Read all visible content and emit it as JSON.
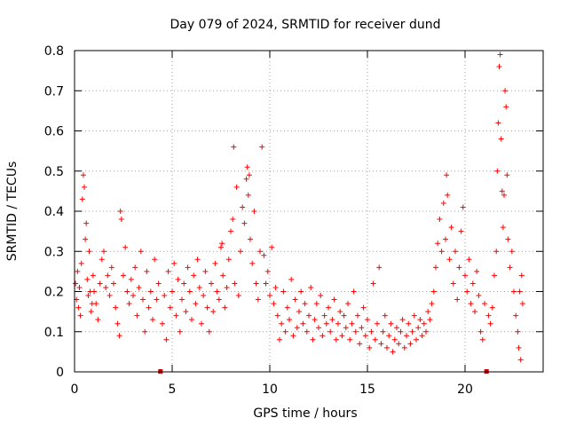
{
  "chart_data": {
    "type": "scatter",
    "title": "Day 079 of 2024, SRMTID for receiver dund",
    "xlabel": "GPS time / hours",
    "ylabel": "SRMTID / TECUs",
    "xlim": [
      0,
      24
    ],
    "ylim": [
      0,
      0.8
    ],
    "xticks": [
      0,
      5,
      10,
      15,
      20
    ],
    "yticks": [
      0,
      0.1,
      0.2,
      0.3,
      0.4,
      0.5,
      0.6,
      0.7,
      0.8
    ],
    "xtick_labels": [
      "0",
      "5",
      "10",
      "15",
      "20"
    ],
    "ytick_labels": [
      "0",
      "0.1",
      "0.2",
      "0.3",
      "0.4",
      "0.5",
      "0.6",
      "0.7",
      "0.8"
    ],
    "grid": true,
    "marker": "plus",
    "colors": {
      "points": "#ff0000",
      "zero_markers": "#cc0000",
      "grid": "#a0a0a0",
      "axes": "#000000"
    },
    "zero_value_markers": [
      {
        "x": 4.4,
        "y": 0
      },
      {
        "x": 21.1,
        "y": 0
      }
    ],
    "series": [
      {
        "name": "SRMTID",
        "points": [
          [
            0.05,
            0.22
          ],
          [
            0.1,
            0.18
          ],
          [
            0.15,
            0.25
          ],
          [
            0.2,
            0.16
          ],
          [
            0.25,
            0.21
          ],
          [
            0.3,
            0.14
          ],
          [
            0.35,
            0.27
          ],
          [
            0.4,
            0.43
          ],
          [
            0.45,
            0.49
          ],
          [
            0.5,
            0.46
          ],
          [
            0.55,
            0.33
          ],
          [
            0.6,
            0.37
          ],
          [
            0.65,
            0.23
          ],
          [
            0.7,
            0.19
          ],
          [
            0.75,
            0.3
          ],
          [
            0.8,
            0.2
          ],
          [
            0.85,
            0.15
          ],
          [
            0.9,
            0.17
          ],
          [
            0.95,
            0.24
          ],
          [
            1.0,
            0.2
          ],
          [
            1.1,
            0.17
          ],
          [
            1.2,
            0.13
          ],
          [
            1.3,
            0.22
          ],
          [
            1.4,
            0.28
          ],
          [
            1.5,
            0.3
          ],
          [
            1.6,
            0.21
          ],
          [
            1.7,
            0.24
          ],
          [
            1.8,
            0.19
          ],
          [
            1.9,
            0.26
          ],
          [
            2.0,
            0.22
          ],
          [
            2.1,
            0.16
          ],
          [
            2.2,
            0.12
          ],
          [
            2.3,
            0.09
          ],
          [
            2.35,
            0.4
          ],
          [
            2.4,
            0.38
          ],
          [
            2.5,
            0.24
          ],
          [
            2.6,
            0.31
          ],
          [
            2.7,
            0.2
          ],
          [
            2.8,
            0.17
          ],
          [
            2.9,
            0.23
          ],
          [
            3.0,
            0.19
          ],
          [
            3.1,
            0.26
          ],
          [
            3.2,
            0.14
          ],
          [
            3.3,
            0.21
          ],
          [
            3.4,
            0.3
          ],
          [
            3.5,
            0.18
          ],
          [
            3.6,
            0.1
          ],
          [
            3.7,
            0.25
          ],
          [
            3.8,
            0.16
          ],
          [
            3.9,
            0.2
          ],
          [
            4.0,
            0.13
          ],
          [
            4.1,
            0.28
          ],
          [
            4.2,
            0.18
          ],
          [
            4.3,
            0.22
          ],
          [
            4.5,
            0.12
          ],
          [
            4.6,
            0.19
          ],
          [
            4.7,
            0.08
          ],
          [
            4.8,
            0.25
          ],
          [
            4.9,
            0.16
          ],
          [
            5.0,
            0.2
          ],
          [
            5.1,
            0.27
          ],
          [
            5.2,
            0.14
          ],
          [
            5.3,
            0.23
          ],
          [
            5.4,
            0.1
          ],
          [
            5.5,
            0.18
          ],
          [
            5.6,
            0.22
          ],
          [
            5.7,
            0.15
          ],
          [
            5.8,
            0.26
          ],
          [
            5.9,
            0.2
          ],
          [
            6.0,
            0.13
          ],
          [
            6.1,
            0.24
          ],
          [
            6.2,
            0.17
          ],
          [
            6.3,
            0.28
          ],
          [
            6.4,
            0.21
          ],
          [
            6.5,
            0.12
          ],
          [
            6.6,
            0.19
          ],
          [
            6.7,
            0.25
          ],
          [
            6.8,
            0.16
          ],
          [
            6.9,
            0.1
          ],
          [
            7.0,
            0.22
          ],
          [
            7.1,
            0.15
          ],
          [
            7.2,
            0.27
          ],
          [
            7.3,
            0.2
          ],
          [
            7.4,
            0.18
          ],
          [
            7.5,
            0.31
          ],
          [
            7.55,
            0.32
          ],
          [
            7.6,
            0.24
          ],
          [
            7.7,
            0.16
          ],
          [
            7.8,
            0.21
          ],
          [
            7.9,
            0.28
          ],
          [
            8.0,
            0.35
          ],
          [
            8.1,
            0.38
          ],
          [
            8.15,
            0.56
          ],
          [
            8.2,
            0.22
          ],
          [
            8.3,
            0.46
          ],
          [
            8.4,
            0.19
          ],
          [
            8.5,
            0.3
          ],
          [
            8.6,
            0.41
          ],
          [
            8.7,
            0.37
          ],
          [
            8.8,
            0.48
          ],
          [
            8.85,
            0.51
          ],
          [
            8.9,
            0.44
          ],
          [
            8.95,
            0.49
          ],
          [
            9.0,
            0.33
          ],
          [
            9.1,
            0.27
          ],
          [
            9.2,
            0.4
          ],
          [
            9.3,
            0.22
          ],
          [
            9.4,
            0.18
          ],
          [
            9.5,
            0.3
          ],
          [
            9.6,
            0.56
          ],
          [
            9.7,
            0.29
          ],
          [
            9.8,
            0.22
          ],
          [
            9.9,
            0.25
          ],
          [
            10.0,
            0.19
          ],
          [
            10.1,
            0.31
          ],
          [
            10.2,
            0.17
          ],
          [
            10.3,
            0.21
          ],
          [
            10.4,
            0.14
          ],
          [
            10.5,
            0.08
          ],
          [
            10.6,
            0.12
          ],
          [
            10.7,
            0.2
          ],
          [
            10.8,
            0.1
          ],
          [
            10.9,
            0.16
          ],
          [
            11.0,
            0.13
          ],
          [
            11.1,
            0.23
          ],
          [
            11.2,
            0.09
          ],
          [
            11.3,
            0.18
          ],
          [
            11.4,
            0.11
          ],
          [
            11.5,
            0.15
          ],
          [
            11.6,
            0.2
          ],
          [
            11.7,
            0.12
          ],
          [
            11.8,
            0.17
          ],
          [
            11.9,
            0.1
          ],
          [
            12.0,
            0.14
          ],
          [
            12.1,
            0.21
          ],
          [
            12.2,
            0.08
          ],
          [
            12.3,
            0.13
          ],
          [
            12.4,
            0.17
          ],
          [
            12.5,
            0.11
          ],
          [
            12.6,
            0.19
          ],
          [
            12.7,
            0.09
          ],
          [
            12.8,
            0.14
          ],
          [
            12.9,
            0.12
          ],
          [
            13.0,
            0.16
          ],
          [
            13.1,
            0.1
          ],
          [
            13.2,
            0.13
          ],
          [
            13.3,
            0.18
          ],
          [
            13.4,
            0.08
          ],
          [
            13.5,
            0.12
          ],
          [
            13.6,
            0.15
          ],
          [
            13.7,
            0.09
          ],
          [
            13.8,
            0.14
          ],
          [
            13.9,
            0.11
          ],
          [
            14.0,
            0.17
          ],
          [
            14.1,
            0.08
          ],
          [
            14.2,
            0.12
          ],
          [
            14.3,
            0.2
          ],
          [
            14.4,
            0.1
          ],
          [
            14.5,
            0.14
          ],
          [
            14.6,
            0.07
          ],
          [
            14.7,
            0.11
          ],
          [
            14.8,
            0.16
          ],
          [
            14.9,
            0.09
          ],
          [
            15.0,
            0.13
          ],
          [
            15.1,
            0.06
          ],
          [
            15.2,
            0.1
          ],
          [
            15.3,
            0.22
          ],
          [
            15.4,
            0.08
          ],
          [
            15.5,
            0.12
          ],
          [
            15.6,
            0.26
          ],
          [
            15.7,
            0.07
          ],
          [
            15.8,
            0.1
          ],
          [
            15.9,
            0.14
          ],
          [
            16.0,
            0.06
          ],
          [
            16.1,
            0.09
          ],
          [
            16.2,
            0.12
          ],
          [
            16.3,
            0.05
          ],
          [
            16.4,
            0.08
          ],
          [
            16.5,
            0.11
          ],
          [
            16.6,
            0.07
          ],
          [
            16.7,
            0.1
          ],
          [
            16.8,
            0.13
          ],
          [
            16.9,
            0.06
          ],
          [
            17.0,
            0.09
          ],
          [
            17.1,
            0.12
          ],
          [
            17.2,
            0.07
          ],
          [
            17.3,
            0.1
          ],
          [
            17.4,
            0.14
          ],
          [
            17.5,
            0.08
          ],
          [
            17.6,
            0.11
          ],
          [
            17.7,
            0.13
          ],
          [
            17.8,
            0.09
          ],
          [
            17.9,
            0.12
          ],
          [
            18.0,
            0.1
          ],
          [
            18.1,
            0.15
          ],
          [
            18.2,
            0.13
          ],
          [
            18.3,
            0.17
          ],
          [
            18.4,
            0.2
          ],
          [
            18.5,
            0.26
          ],
          [
            18.6,
            0.32
          ],
          [
            18.7,
            0.38
          ],
          [
            18.8,
            0.3
          ],
          [
            18.9,
            0.42
          ],
          [
            19.0,
            0.33
          ],
          [
            19.05,
            0.49
          ],
          [
            19.1,
            0.44
          ],
          [
            19.2,
            0.28
          ],
          [
            19.3,
            0.36
          ],
          [
            19.4,
            0.22
          ],
          [
            19.5,
            0.3
          ],
          [
            19.6,
            0.18
          ],
          [
            19.7,
            0.26
          ],
          [
            19.8,
            0.35
          ],
          [
            19.9,
            0.41
          ],
          [
            20.0,
            0.24
          ],
          [
            20.1,
            0.2
          ],
          [
            20.2,
            0.28
          ],
          [
            20.3,
            0.17
          ],
          [
            20.4,
            0.22
          ],
          [
            20.5,
            0.15
          ],
          [
            20.6,
            0.25
          ],
          [
            20.7,
            0.19
          ],
          [
            20.8,
            0.1
          ],
          [
            20.9,
            0.08
          ],
          [
            21.0,
            0.17
          ],
          [
            21.2,
            0.14
          ],
          [
            21.3,
            0.12
          ],
          [
            21.4,
            0.16
          ],
          [
            21.5,
            0.24
          ],
          [
            21.6,
            0.3
          ],
          [
            21.65,
            0.5
          ],
          [
            21.7,
            0.62
          ],
          [
            21.75,
            0.76
          ],
          [
            21.8,
            0.79
          ],
          [
            21.85,
            0.58
          ],
          [
            21.9,
            0.45
          ],
          [
            21.95,
            0.36
          ],
          [
            22.0,
            0.44
          ],
          [
            22.05,
            0.7
          ],
          [
            22.1,
            0.66
          ],
          [
            22.15,
            0.49
          ],
          [
            22.2,
            0.33
          ],
          [
            22.3,
            0.26
          ],
          [
            22.4,
            0.3
          ],
          [
            22.5,
            0.2
          ],
          [
            22.6,
            0.14
          ],
          [
            22.7,
            0.1
          ],
          [
            22.75,
            0.06
          ],
          [
            22.8,
            0.2
          ],
          [
            22.85,
            0.03
          ],
          [
            22.9,
            0.24
          ],
          [
            22.95,
            0.17
          ]
        ]
      }
    ]
  }
}
